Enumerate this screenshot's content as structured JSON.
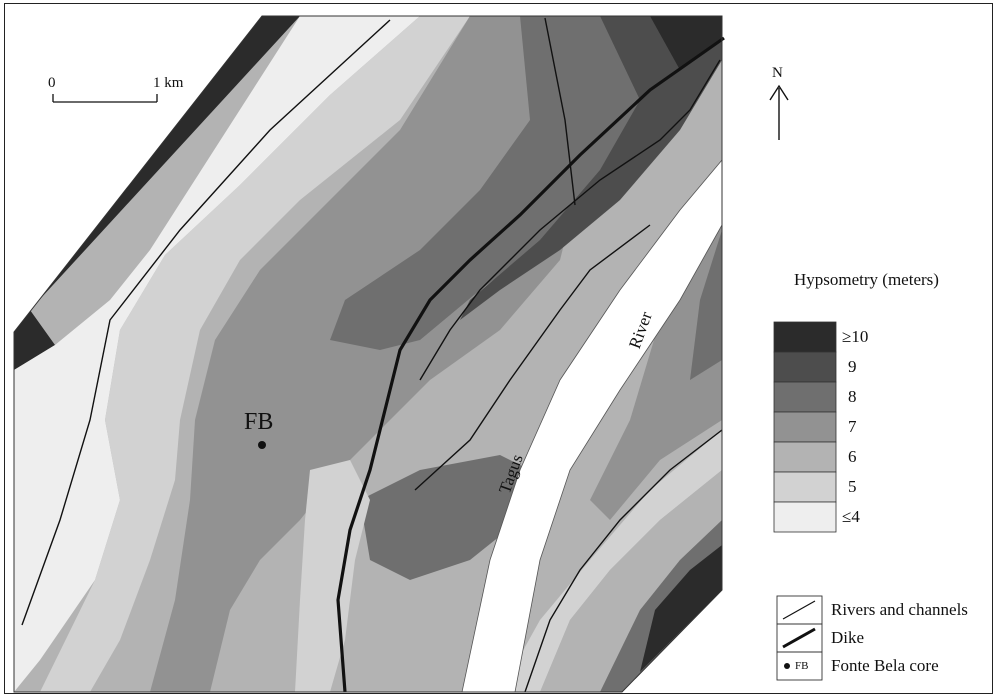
{
  "scale": {
    "start": "0",
    "end": "1 km"
  },
  "north": {
    "label": "N"
  },
  "site": {
    "label": "FB"
  },
  "river": {
    "word1": "Tagus",
    "word2": "River"
  },
  "hypsometry": {
    "title": "Hypsometry (meters)",
    "classes": [
      {
        "label": "≥10",
        "color": "#2b2b2b"
      },
      {
        "label": "9",
        "color": "#4d4d4d"
      },
      {
        "label": "8",
        "color": "#6f6f6f"
      },
      {
        "label": "7",
        "color": "#929292"
      },
      {
        "label": "6",
        "color": "#b3b3b3"
      },
      {
        "label": "5",
        "color": "#d2d2d2"
      },
      {
        "label": "≤4",
        "color": "#eeeeee"
      }
    ]
  },
  "legend": {
    "rivers": "Rivers and channels",
    "dike": "Dike",
    "core_code": "FB",
    "core": "Fonte Bela core"
  }
}
